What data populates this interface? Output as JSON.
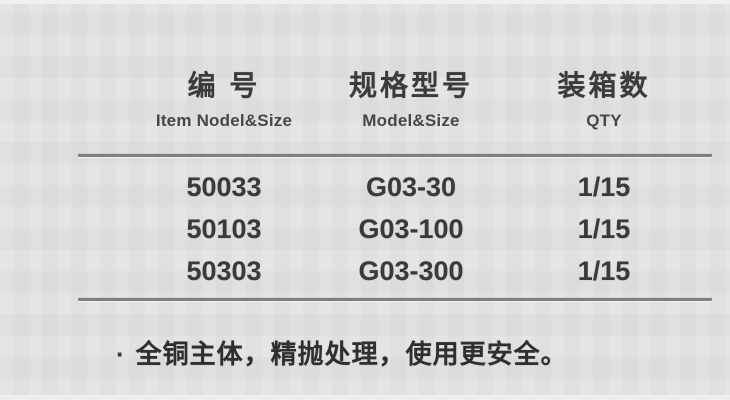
{
  "table": {
    "columns": [
      {
        "zh": "编 号",
        "en": "Item Nodel&Size"
      },
      {
        "zh": "规格型号",
        "en": "Model&Size"
      },
      {
        "zh": "装箱数",
        "en": "QTY"
      }
    ],
    "rows": [
      {
        "item_no": "50033",
        "model": "G03-30",
        "qty": "1/15"
      },
      {
        "item_no": "50103",
        "model": "G03-100",
        "qty": "1/15"
      },
      {
        "item_no": "50303",
        "model": "G03-300",
        "qty": "1/15"
      }
    ]
  },
  "note": {
    "bullet": "·",
    "text": "全铜主体，精抛处理，使用更安全。"
  },
  "colors": {
    "background": "#e3e3e3",
    "text": "#3a3a3a",
    "rule": "#7f7f7f"
  }
}
